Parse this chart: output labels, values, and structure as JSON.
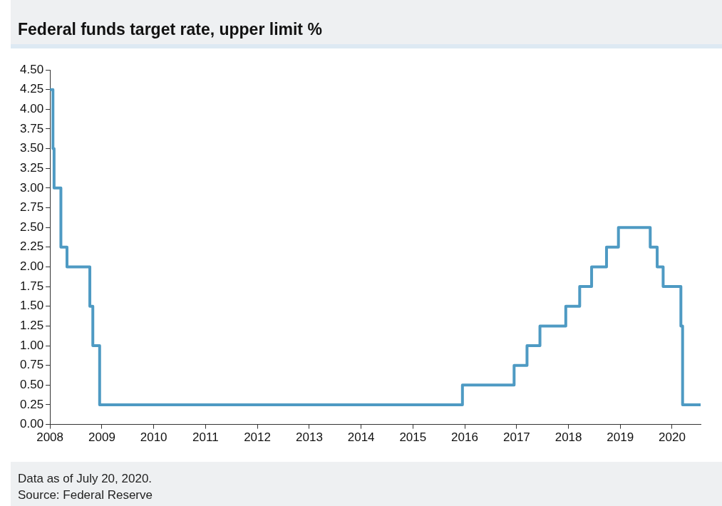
{
  "chart_data": {
    "type": "step",
    "title": "Federal funds target rate, upper limit %",
    "x": [
      "2008-01-01",
      "2008-01-22",
      "2008-01-30",
      "2008-03-18",
      "2008-04-30",
      "2008-10-08",
      "2008-10-29",
      "2008-12-16",
      "2015-12-16",
      "2016-12-14",
      "2017-03-15",
      "2017-06-14",
      "2017-12-13",
      "2018-03-21",
      "2018-06-13",
      "2018-09-26",
      "2018-12-19",
      "2019-07-31",
      "2019-09-18",
      "2019-10-30",
      "2020-03-03",
      "2020-03-15",
      "2020-07-20"
    ],
    "values": [
      4.25,
      3.5,
      3.0,
      2.25,
      2.0,
      1.5,
      1.0,
      0.25,
      0.5,
      0.75,
      1.0,
      1.25,
      1.5,
      1.75,
      2.0,
      2.25,
      2.5,
      2.25,
      2.0,
      1.75,
      1.25,
      0.25,
      0.25
    ],
    "color": "#4e9ac3",
    "xlim": [
      "2008-01-01",
      "2020-07-20"
    ],
    "xticks": [
      {
        "value": "2008",
        "label": "2008"
      },
      {
        "value": "2009",
        "label": "2009"
      },
      {
        "value": "2010",
        "label": "2010"
      },
      {
        "value": "2011",
        "label": "2011"
      },
      {
        "value": "2012",
        "label": "2012"
      },
      {
        "value": "2013",
        "label": "2013"
      },
      {
        "value": "2014",
        "label": "2014"
      },
      {
        "value": "2015",
        "label": "2015"
      },
      {
        "value": "2016",
        "label": "2016"
      },
      {
        "value": "2017",
        "label": "2017"
      },
      {
        "value": "2018",
        "label": "2018"
      },
      {
        "value": "2019",
        "label": "2019"
      },
      {
        "value": "2020",
        "label": "2020"
      }
    ],
    "ylim": [
      0,
      4.5
    ],
    "yticks": [
      {
        "value": 0,
        "label": "0.00"
      },
      {
        "value": 0.25,
        "label": "0.25"
      },
      {
        "value": 0.5,
        "label": "0.50"
      },
      {
        "value": 0.75,
        "label": "0.75"
      },
      {
        "value": 1,
        "label": "1.00"
      },
      {
        "value": 1.25,
        "label": "1.25"
      },
      {
        "value": 1.5,
        "label": "1.50"
      },
      {
        "value": 1.75,
        "label": "1.75"
      },
      {
        "value": 2,
        "label": "2.00"
      },
      {
        "value": 2.25,
        "label": "2.25"
      },
      {
        "value": 2.5,
        "label": "2.50"
      },
      {
        "value": 2.75,
        "label": "2.75"
      },
      {
        "value": 3,
        "label": "3.00"
      },
      {
        "value": 3.25,
        "label": "3.25"
      },
      {
        "value": 3.5,
        "label": "3.50"
      },
      {
        "value": 3.75,
        "label": "3.75"
      },
      {
        "value": 4,
        "label": "4.00"
      },
      {
        "value": 4.25,
        "label": "4.25"
      },
      {
        "value": 4.5,
        "label": "4.50"
      }
    ],
    "grid": false,
    "legend": false,
    "annotations": [
      "Data as of July 20, 2020.",
      "Source: Federal Reserve"
    ]
  }
}
